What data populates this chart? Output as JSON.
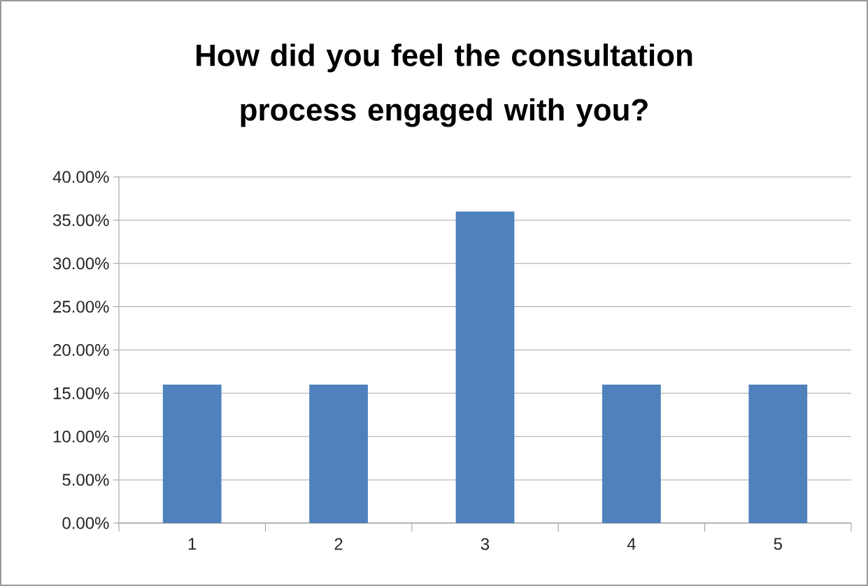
{
  "chart_data": {
    "type": "bar",
    "title": "How did you feel the consultation process engaged with you?",
    "categories": [
      "1",
      "2",
      "3",
      "4",
      "5"
    ],
    "values": [
      16,
      16,
      36,
      16,
      16
    ],
    "color": "#4f81bd",
    "ylim": [
      0,
      40
    ],
    "yticks": [
      {
        "value": 0,
        "label": "0.00%"
      },
      {
        "value": 5,
        "label": "5.00%"
      },
      {
        "value": 10,
        "label": "10.00%"
      },
      {
        "value": 15,
        "label": "15.00%"
      },
      {
        "value": 20,
        "label": "20.00%"
      },
      {
        "value": 25,
        "label": "25.00%"
      },
      {
        "value": 30,
        "label": "30.00%"
      },
      {
        "value": 35,
        "label": "35.00%"
      },
      {
        "value": 40,
        "label": "40.00%"
      }
    ],
    "grid": true
  }
}
